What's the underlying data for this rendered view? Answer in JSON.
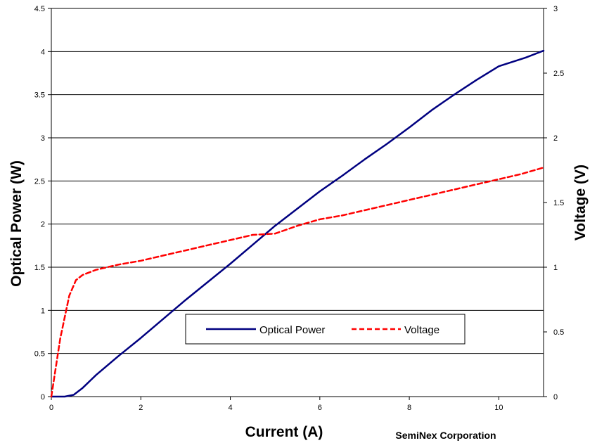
{
  "chart_data": {
    "type": "line",
    "xlabel": "Current (A)",
    "ylabel": "Optical Power (W)",
    "y2label": "Voltage (V)",
    "xlim": [
      0,
      11
    ],
    "ylim": [
      0,
      4.5
    ],
    "y2lim": [
      0,
      3
    ],
    "x_ticks": [
      "0",
      "2",
      "4",
      "6",
      "8",
      "10"
    ],
    "x_tick_values": [
      0,
      2,
      4,
      6,
      8,
      10
    ],
    "y_ticks": [
      "0",
      "0.5",
      "1",
      "1.5",
      "2",
      "2.5",
      "3",
      "3.5",
      "4",
      "4.5"
    ],
    "y_tick_values": [
      0,
      0.5,
      1,
      1.5,
      2,
      2.5,
      3,
      3.5,
      4,
      4.5
    ],
    "y2_ticks": [
      "0",
      "0.5",
      "1",
      "1.5",
      "2",
      "2.5",
      "3"
    ],
    "y2_tick_values": [
      0,
      0.5,
      1,
      1.5,
      2,
      2.5,
      3
    ],
    "grid": "horizontal",
    "legend_position": "center",
    "series": [
      {
        "name": "Optical Power",
        "axis": "left",
        "color": "#000080",
        "style": "solid",
        "x": [
          0,
          0.3,
          0.5,
          0.7,
          1.0,
          1.5,
          2.0,
          2.5,
          3.0,
          3.5,
          4.0,
          4.5,
          5.0,
          5.5,
          6.0,
          6.5,
          7.0,
          7.5,
          8.0,
          8.5,
          9.0,
          9.5,
          10.0,
          10.3,
          10.6,
          11.0
        ],
        "y": [
          0,
          0,
          0.02,
          0.1,
          0.25,
          0.47,
          0.68,
          0.9,
          1.12,
          1.33,
          1.54,
          1.76,
          1.98,
          2.18,
          2.38,
          2.56,
          2.75,
          2.93,
          3.12,
          3.32,
          3.5,
          3.67,
          3.83,
          3.88,
          3.93,
          4.01
        ]
      },
      {
        "name": "Voltage",
        "axis": "right",
        "color": "#ff0000",
        "style": "dashed",
        "x": [
          0,
          0.2,
          0.4,
          0.55,
          0.7,
          1.0,
          1.5,
          2.0,
          2.5,
          3.0,
          3.5,
          4.0,
          4.5,
          5.0,
          5.5,
          6.0,
          6.5,
          7.0,
          7.5,
          8.0,
          8.5,
          9.0,
          9.5,
          10.0,
          10.5,
          11.0
        ],
        "y": [
          0,
          0.45,
          0.78,
          0.9,
          0.94,
          0.98,
          1.02,
          1.05,
          1.09,
          1.13,
          1.17,
          1.21,
          1.25,
          1.26,
          1.32,
          1.37,
          1.4,
          1.44,
          1.48,
          1.52,
          1.56,
          1.6,
          1.64,
          1.68,
          1.72,
          1.77
        ]
      }
    ]
  },
  "credit": "SemiNex Corporation"
}
